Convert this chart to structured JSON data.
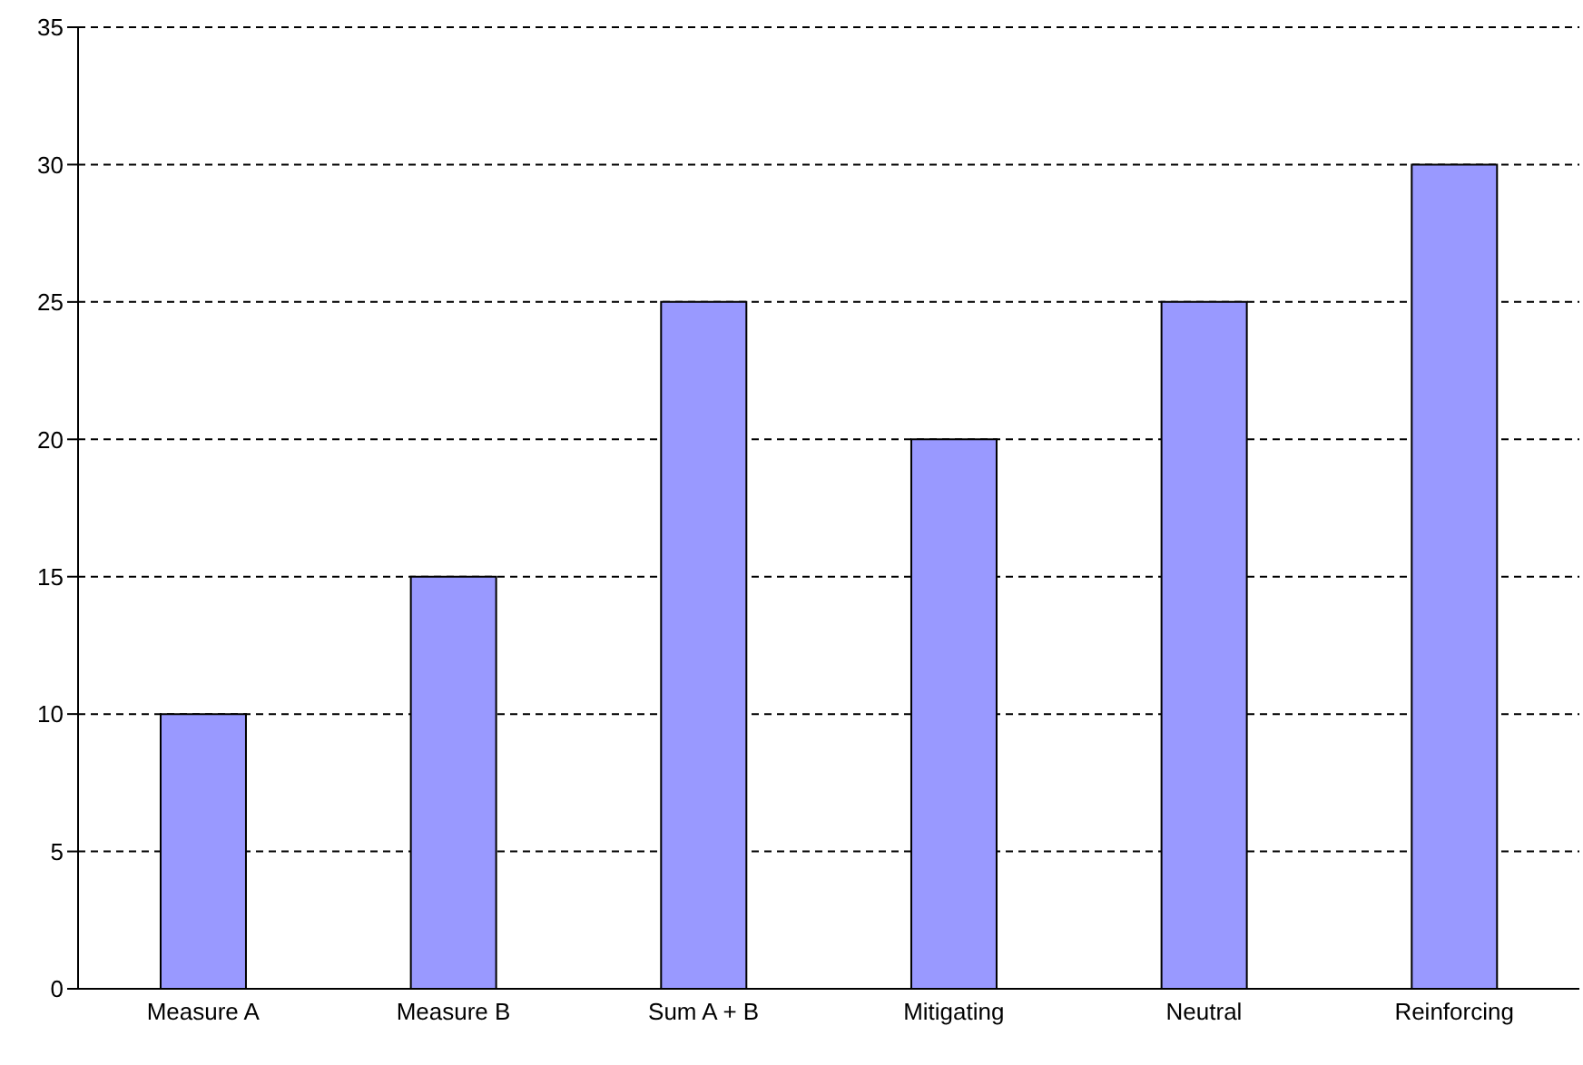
{
  "chart_data": {
    "type": "bar",
    "categories": [
      "Measure A",
      "Measure B",
      "Sum A + B",
      "Mitigating",
      "Neutral",
      "Reinforcing"
    ],
    "values": [
      10,
      15,
      25,
      20,
      25,
      30
    ],
    "color": "#9999ff",
    "ylim": [
      0,
      35
    ],
    "yticks": [
      0,
      5,
      10,
      15,
      20,
      25,
      30,
      35
    ],
    "grid": "y"
  }
}
